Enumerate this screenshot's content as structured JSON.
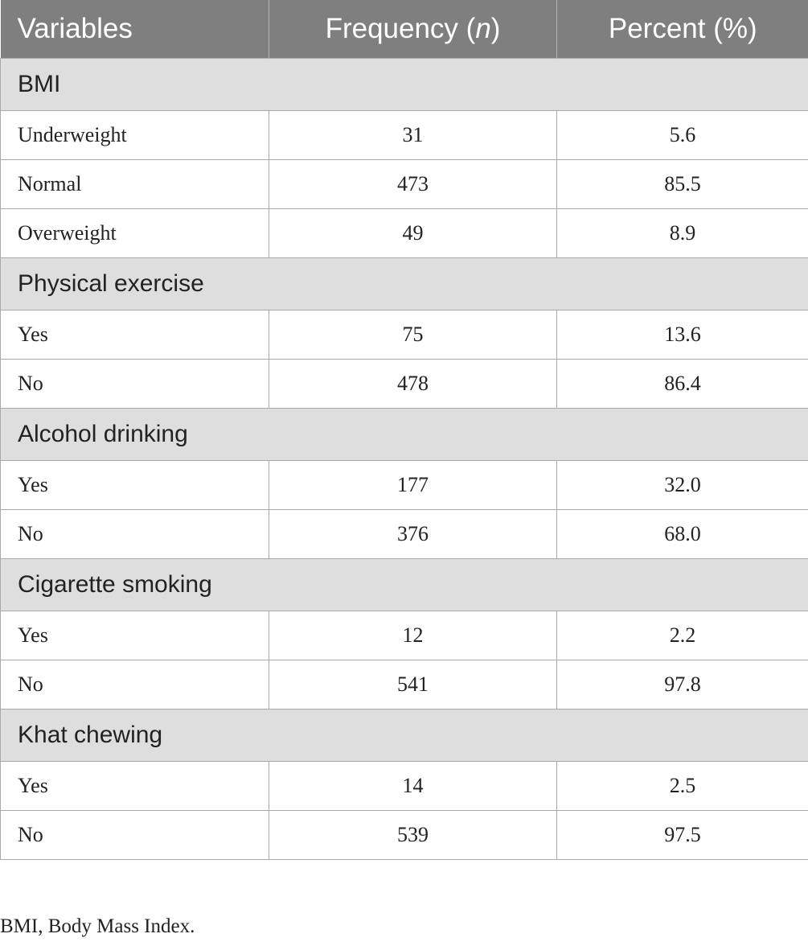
{
  "table": {
    "headers": {
      "variables": "Variables",
      "frequency_prefix": "Frequency (",
      "frequency_italic": "n",
      "frequency_suffix": ")",
      "percent": "Percent (%)"
    },
    "sections": [
      {
        "title": "BMI",
        "rows": [
          {
            "label": "Underweight",
            "frequency": "31",
            "percent": "5.6"
          },
          {
            "label": "Normal",
            "frequency": "473",
            "percent": "85.5"
          },
          {
            "label": "Overweight",
            "frequency": "49",
            "percent": "8.9"
          }
        ]
      },
      {
        "title": "Physical exercise",
        "rows": [
          {
            "label": "Yes",
            "frequency": "75",
            "percent": "13.6"
          },
          {
            "label": "No",
            "frequency": "478",
            "percent": "86.4"
          }
        ]
      },
      {
        "title": "Alcohol drinking",
        "rows": [
          {
            "label": "Yes",
            "frequency": "177",
            "percent": "32.0"
          },
          {
            "label": "No",
            "frequency": "376",
            "percent": "68.0"
          }
        ]
      },
      {
        "title": "Cigarette smoking",
        "rows": [
          {
            "label": "Yes",
            "frequency": "12",
            "percent": "2.2"
          },
          {
            "label": "No",
            "frequency": "541",
            "percent": "97.8"
          }
        ]
      },
      {
        "title": "Khat chewing",
        "rows": [
          {
            "label": "Yes",
            "frequency": "14",
            "percent": "2.5"
          },
          {
            "label": "No",
            "frequency": "539",
            "percent": "97.5"
          }
        ]
      }
    ]
  },
  "footnote": "BMI, Body Mass Index.",
  "colors": {
    "header_bg": "#7f7f7f",
    "section_bg": "#dedede",
    "border": "#a9a9a9"
  }
}
